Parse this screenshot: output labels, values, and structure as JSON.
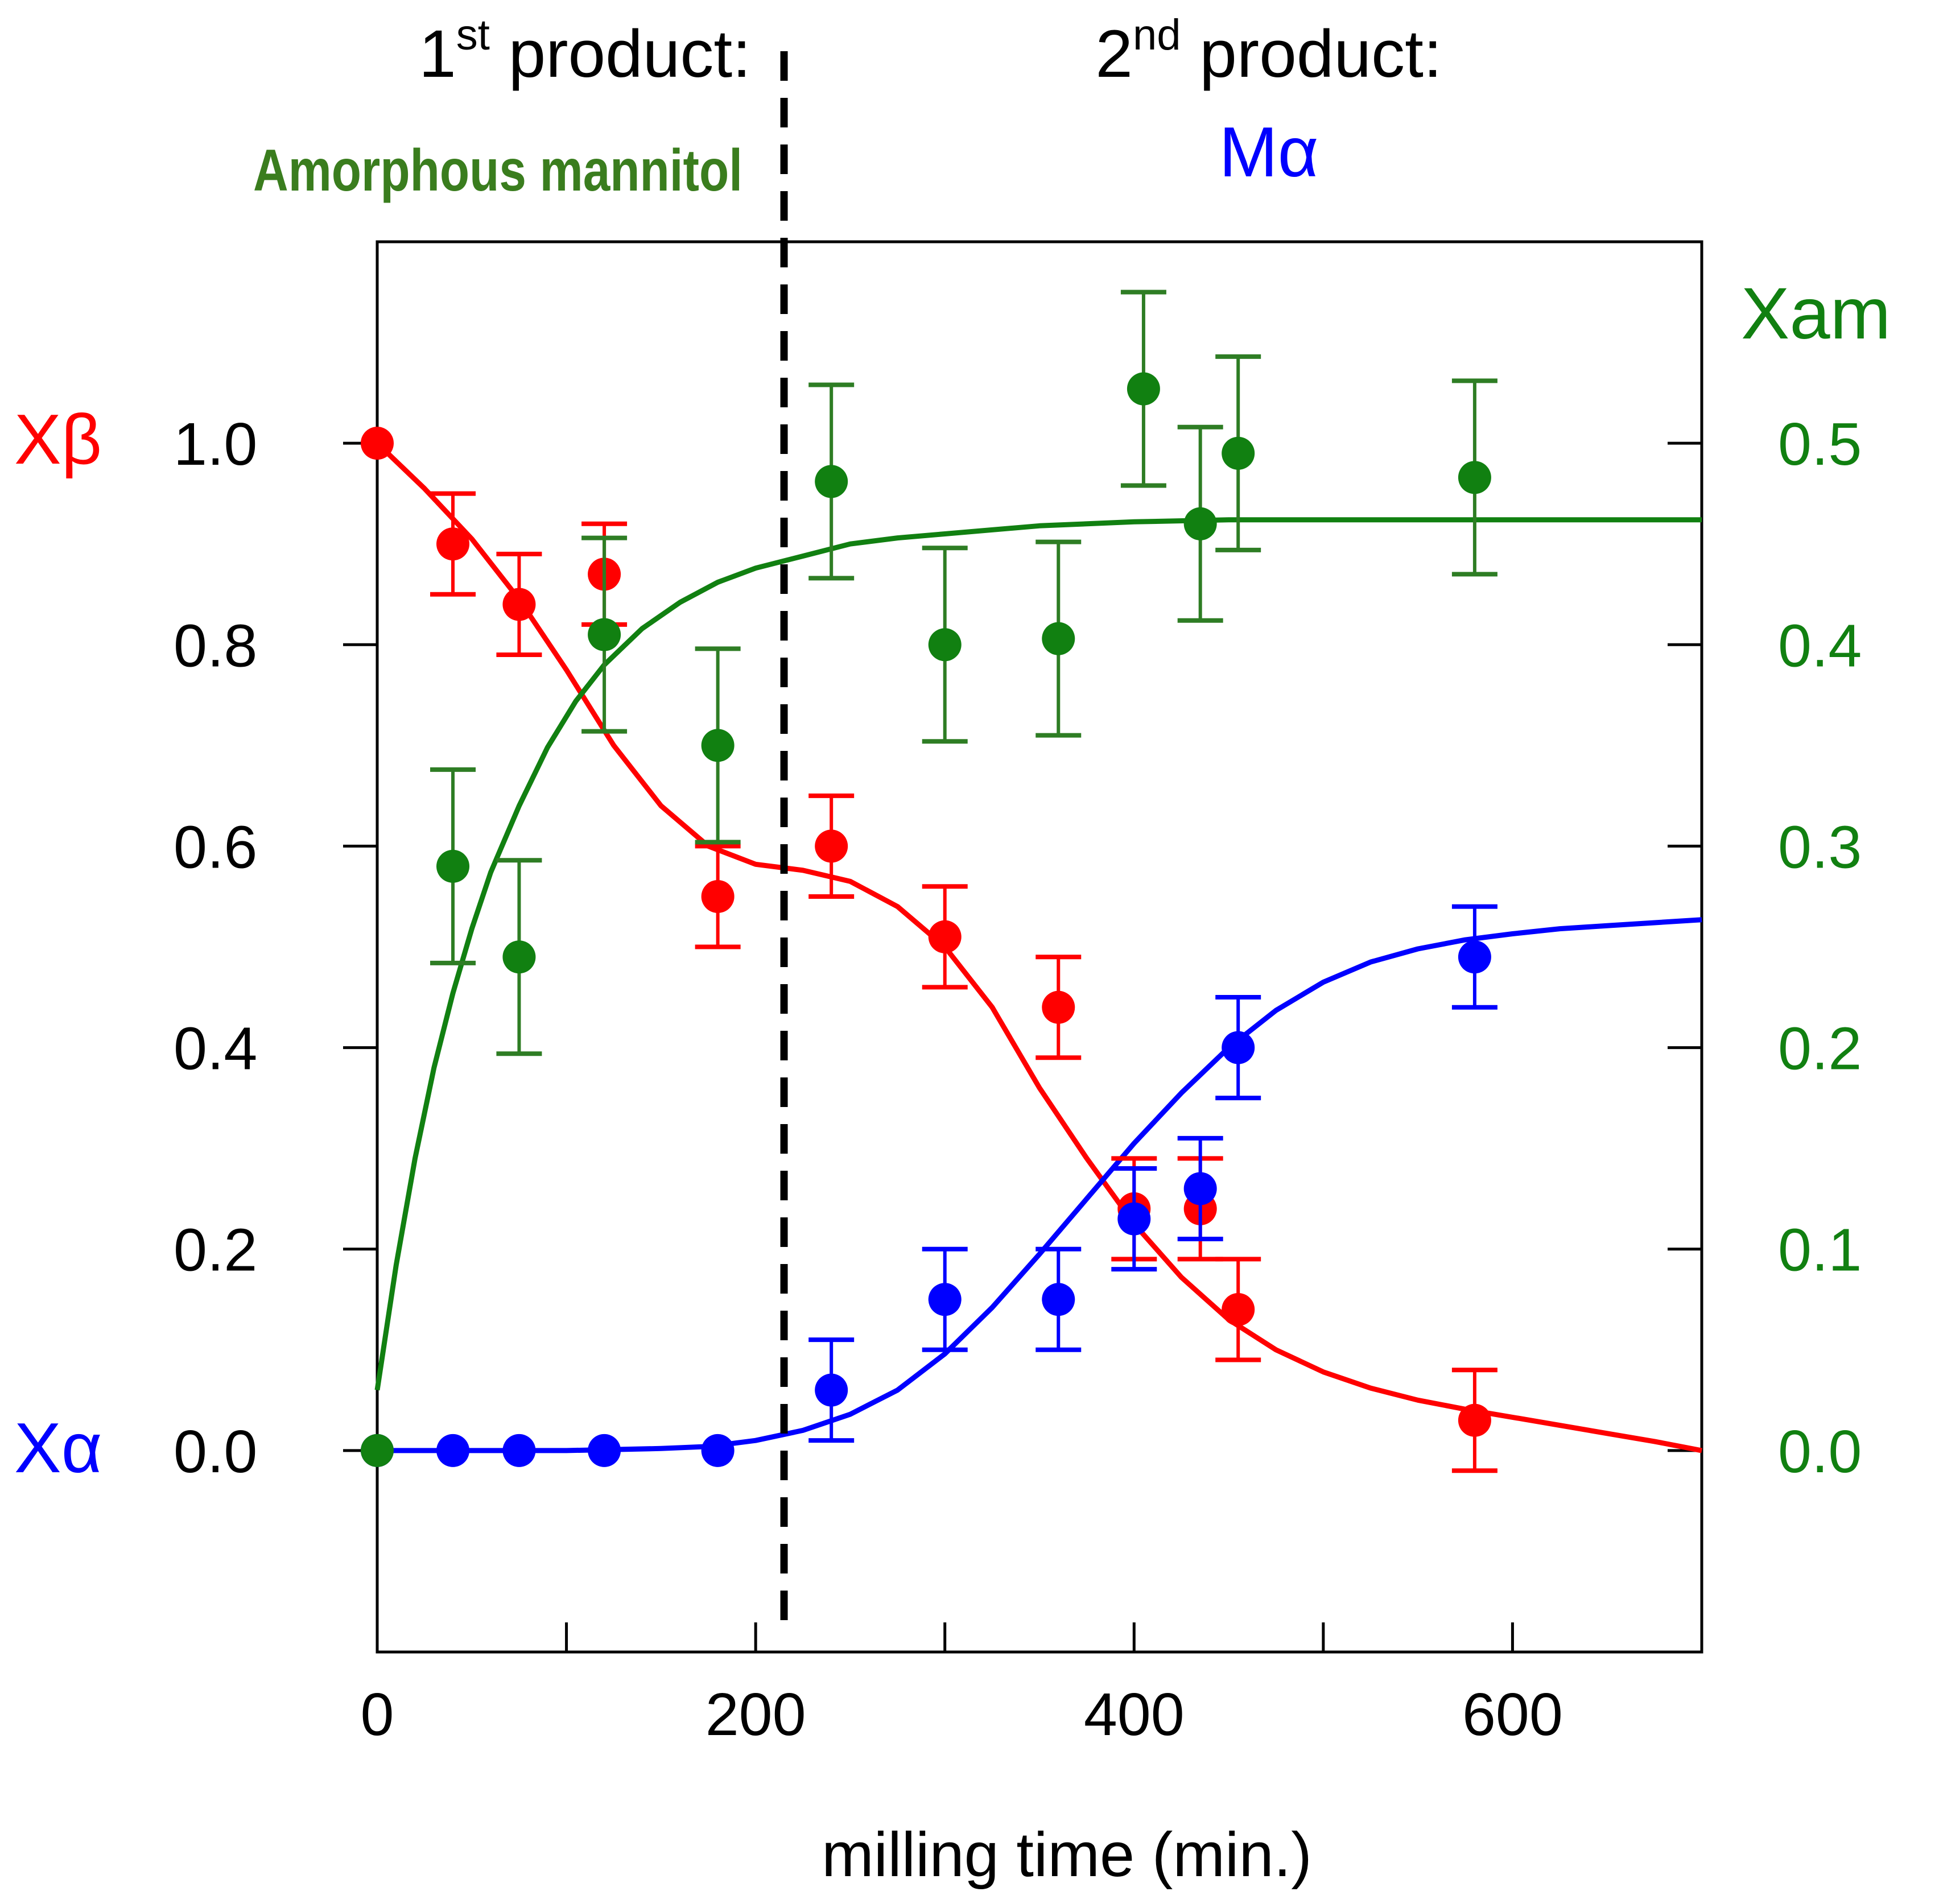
{
  "chart_data": {
    "type": "scatter",
    "title_left": "1st product:",
    "title_left_main": "1",
    "title_left_sup": "st",
    "title_left_rest": " product:",
    "subtitle_left": "Amorphous mannitol",
    "title_right_main": "2",
    "title_right_sup": "nd",
    "title_right_rest": " product:",
    "subtitle_right": "Mα",
    "xlabel": "milling time (min.)",
    "ylabel_left_top": "Xβ",
    "ylabel_left_bottom": "Xα",
    "ylabel_right": "Xam",
    "xlim": [
      0,
      700
    ],
    "ylim_left": [
      -0.2,
      1.2
    ],
    "ylim_right": [
      -0.1,
      0.6
    ],
    "x_ticks": [
      0,
      200,
      400,
      600
    ],
    "x_tick_labels": [
      "0",
      "200",
      "400",
      "600"
    ],
    "y_left_ticks": [
      0.0,
      0.2,
      0.4,
      0.6,
      0.8,
      1.0
    ],
    "y_left_tick_labels": [
      "0.0",
      "0.2",
      "0.4",
      "0.6",
      "0.8",
      "1.0"
    ],
    "y_right_ticks": [
      0.0,
      0.1,
      0.2,
      0.3,
      0.4,
      0.5
    ],
    "y_right_tick_labels": [
      "0.0",
      "0.1",
      "0.2",
      "0.3",
      "0.4",
      "0.5"
    ],
    "divider_x": 215,
    "colors": {
      "beta": "#ff0000",
      "alpha": "#0000ff",
      "amorphous": "#118011",
      "amorphous_err": "#2e7d24",
      "title_green": "#3a7d1e",
      "axis": "#000000"
    },
    "series": [
      {
        "name": "Xβ",
        "axis": "left",
        "color": "#ff0000",
        "x": [
          0,
          40,
          75,
          120,
          180,
          240,
          300,
          360,
          400,
          435,
          455,
          580
        ],
        "y": [
          1.0,
          0.9,
          0.84,
          0.87,
          0.55,
          0.6,
          0.51,
          0.44,
          0.24,
          0.24,
          0.14,
          0.03
        ],
        "err": [
          0,
          0.05,
          0.05,
          0.05,
          0.05,
          0.05,
          0.05,
          0.05,
          0.05,
          0.05,
          0.05,
          0.05
        ]
      },
      {
        "name": "Xα",
        "axis": "left",
        "color": "#0000ff",
        "x": [
          0,
          40,
          75,
          120,
          180,
          240,
          300,
          360,
          400,
          435,
          455,
          580
        ],
        "y": [
          0.0,
          0.0,
          0.0,
          0.0,
          0.0,
          0.06,
          0.15,
          0.15,
          0.23,
          0.26,
          0.4,
          0.49
        ],
        "err": [
          0,
          0,
          0,
          0,
          0,
          0.05,
          0.05,
          0.05,
          0.05,
          0.05,
          0.05,
          0.05
        ]
      },
      {
        "name": "Xam",
        "axis": "right",
        "color": "#118011",
        "x": [
          0,
          40,
          75,
          120,
          180,
          240,
          300,
          360,
          405,
          435,
          455,
          580
        ],
        "y": [
          0.0,
          0.29,
          0.245,
          0.405,
          0.35,
          0.481,
          0.4,
          0.403,
          0.527,
          0.46,
          0.495,
          0.483
        ],
        "err": [
          0,
          0.048,
          0.048,
          0.048,
          0.048,
          0.048,
          0.048,
          0.048,
          0.048,
          0.048,
          0.048,
          0.048
        ]
      }
    ],
    "fit_curves": [
      {
        "name": "Xβ fit",
        "axis": "left",
        "color": "#ff0000",
        "x": [
          0,
          25,
          50,
          75,
          100,
          125,
          150,
          175,
          200,
          225,
          250,
          275,
          300,
          325,
          350,
          375,
          400,
          425,
          450,
          475,
          500,
          525,
          550,
          575,
          600,
          625,
          650,
          675,
          700
        ],
        "y": [
          1.0,
          0.955,
          0.905,
          0.845,
          0.775,
          0.7,
          0.64,
          0.6,
          0.582,
          0.576,
          0.565,
          0.54,
          0.5,
          0.44,
          0.36,
          0.29,
          0.225,
          0.172,
          0.13,
          0.1,
          0.078,
          0.062,
          0.05,
          0.041,
          0.033,
          0.025,
          0.017,
          0.009,
          0.0
        ]
      },
      {
        "name": "Xα fit",
        "axis": "left",
        "color": "#0000ff",
        "x": [
          0,
          50,
          100,
          150,
          175,
          200,
          225,
          250,
          275,
          300,
          325,
          350,
          375,
          400,
          425,
          450,
          475,
          500,
          525,
          550,
          575,
          600,
          625,
          650,
          675,
          700
        ],
        "y": [
          0.0,
          0.0,
          0.0,
          0.002,
          0.004,
          0.01,
          0.02,
          0.036,
          0.06,
          0.096,
          0.142,
          0.195,
          0.25,
          0.305,
          0.355,
          0.4,
          0.437,
          0.465,
          0.485,
          0.498,
          0.507,
          0.513,
          0.518,
          0.521,
          0.524,
          0.527
        ]
      },
      {
        "name": "Xam fit",
        "axis": "right",
        "color": "#118011",
        "x": [
          0,
          10,
          20,
          30,
          40,
          50,
          60,
          75,
          90,
          105,
          120,
          140,
          160,
          180,
          200,
          225,
          250,
          275,
          300,
          350,
          400,
          450,
          500,
          600,
          700
        ],
        "y": [
          0.03,
          0.092,
          0.145,
          0.19,
          0.227,
          0.259,
          0.287,
          0.32,
          0.349,
          0.372,
          0.39,
          0.408,
          0.421,
          0.431,
          0.438,
          0.444,
          0.45,
          0.453,
          0.455,
          0.459,
          0.461,
          0.462,
          0.462,
          0.462,
          0.462
        ]
      }
    ]
  }
}
